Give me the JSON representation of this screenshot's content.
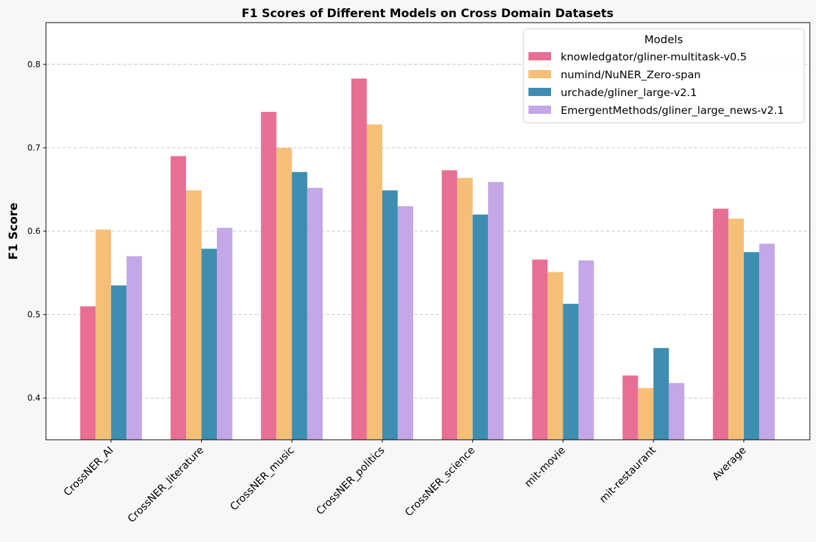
{
  "chart_data": {
    "type": "bar",
    "title": "F1 Scores of Different Models on Cross Domain Datasets",
    "xlabel": "",
    "ylabel": "F1 Score",
    "ylim": [
      0.35,
      0.85
    ],
    "yticks": [
      0.4,
      0.5,
      0.6,
      0.7,
      0.8
    ],
    "grid": true,
    "legend_title": "Models",
    "legend_position": "top-right",
    "categories": [
      "CrossNER_AI",
      "CrossNER_literature",
      "CrossNER_music",
      "CrossNER_politics",
      "CrossNER_science",
      "mit-movie",
      "mit-restaurant",
      "Average"
    ],
    "series": [
      {
        "name": "knowledgator/gliner-multitask-v0.5",
        "color": "#E96E93",
        "values": [
          0.51,
          0.69,
          0.743,
          0.783,
          0.673,
          0.566,
          0.427,
          0.627
        ]
      },
      {
        "name": "numind/NuNER_Zero-span",
        "color": "#F5BF77",
        "values": [
          0.602,
          0.649,
          0.7,
          0.728,
          0.664,
          0.551,
          0.412,
          0.615
        ]
      },
      {
        "name": "urchade/gliner_large-v2.1",
        "color": "#3D8EB0",
        "values": [
          0.535,
          0.579,
          0.671,
          0.649,
          0.62,
          0.513,
          0.46,
          0.575
        ]
      },
      {
        "name": "EmergentMethods/gliner_large_news-v2.1",
        "color": "#C4A7E6",
        "values": [
          0.57,
          0.604,
          0.652,
          0.63,
          0.659,
          0.565,
          0.418,
          0.585
        ]
      }
    ]
  }
}
